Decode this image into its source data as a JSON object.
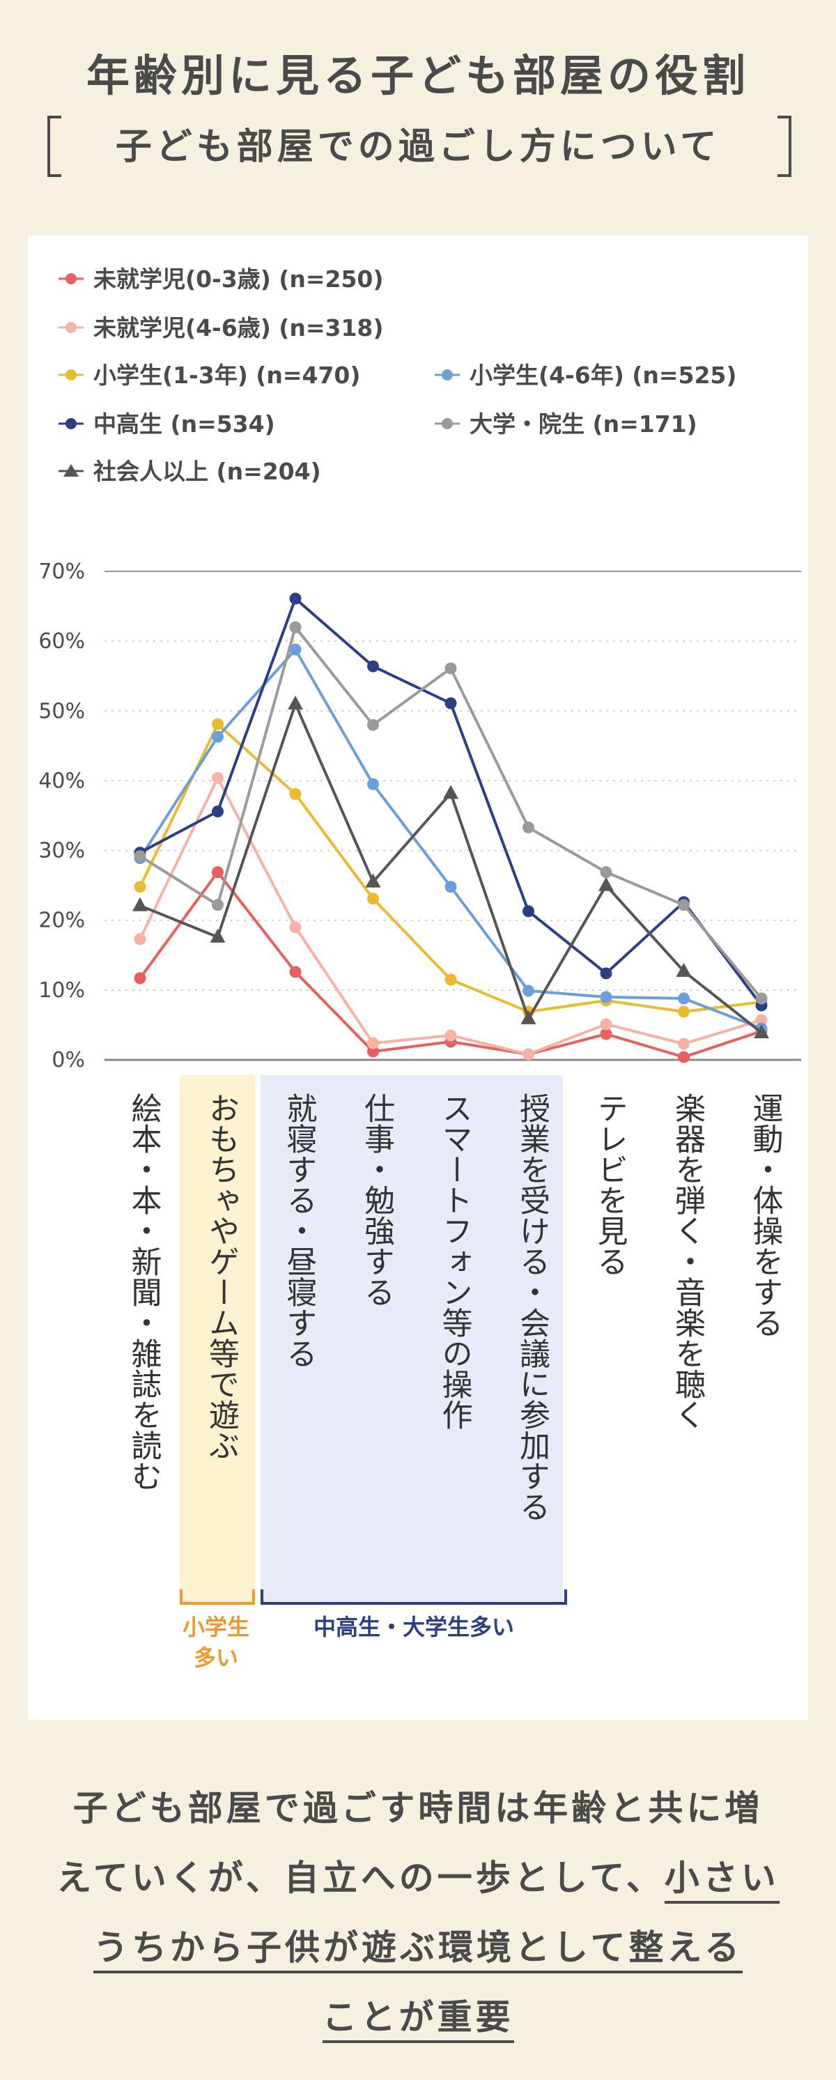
{
  "header": {
    "title": "年齢別に見る子ども部屋の役割",
    "subtitle": "子ども部屋での過ごし方について"
  },
  "chart_data": {
    "type": "line",
    "ylim": [
      0,
      70
    ],
    "yticks": [
      "0%",
      "10%",
      "20%",
      "30%",
      "40%",
      "50%",
      "60%",
      "70%"
    ],
    "grid": true,
    "legend_position": "top",
    "categories": [
      "絵本・本・新聞・雑誌を読む",
      "おもちゃやゲーム等で遊ぶ",
      "就寝する・昼寝する",
      "仕事・勉強する",
      "スマートフォン等の操作",
      "授業を受ける・会議に参加する",
      "テレビを見る",
      "楽器を弾く・音楽を聴く",
      "運動・体操をする"
    ],
    "series": [
      {
        "name": "未就学児(0-3歳)",
        "n": "(n=250)",
        "color": "#e8605c",
        "marker": "circle",
        "values": [
          11.7,
          26.9,
          12.6,
          1.2,
          2.6,
          0.8,
          3.7,
          0.4,
          4.1
        ]
      },
      {
        "name": "未就学児(4-6歳)",
        "n": "(n=318)",
        "color": "#f6b3a4",
        "marker": "circle",
        "values": [
          17.3,
          40.4,
          19.0,
          2.4,
          3.5,
          0.8,
          5.1,
          2.3,
          5.7
        ]
      },
      {
        "name": "小学生(1-3年)",
        "n": "(n=470)",
        "color": "#eabb2e",
        "marker": "circle",
        "values": [
          24.8,
          48.1,
          38.1,
          23.1,
          11.5,
          6.9,
          8.5,
          6.9,
          8.3
        ]
      },
      {
        "name": "小学生(4-6年)",
        "n": "(n=525)",
        "color": "#6c9edb",
        "marker": "circle",
        "values": [
          28.9,
          46.3,
          58.8,
          39.5,
          24.8,
          9.9,
          9.0,
          8.8,
          4.5
        ]
      },
      {
        "name": "中高生",
        "n": "(n=534)",
        "color": "#2b3f86",
        "marker": "circle",
        "values": [
          29.7,
          35.6,
          66.1,
          56.4,
          51.1,
          21.3,
          12.4,
          22.6,
          7.8
        ]
      },
      {
        "name": "大学・院生",
        "n": "(n=171)",
        "color": "#9a9a9a",
        "marker": "circle",
        "values": [
          29.2,
          22.2,
          62.0,
          48.0,
          56.1,
          33.3,
          26.9,
          22.2,
          8.8
        ]
      },
      {
        "name": "社会人以上",
        "n": "(n=204)",
        "color": "#555555",
        "marker": "triangle",
        "values": [
          22.1,
          17.6,
          51.0,
          25.5,
          38.2,
          5.9,
          25.0,
          12.7,
          3.9
        ]
      }
    ],
    "groups": [
      {
        "label": "小学生\n多い",
        "color": "#ec9a2e",
        "highlight": "#fdf1cf"
      },
      {
        "label": "中高生・大学生多い",
        "color": "#2b3f86",
        "highlight": "#e7ecf8"
      }
    ]
  },
  "conclusion": {
    "line1": "子ども部屋で過ごす時間は年齢と共に増",
    "line2a": "えていくが、自立への一歩として、",
    "line2b": "小さい",
    "line3a": "うちから子供が遊ぶ環境として",
    "line3b": "整える",
    "line4": "ことが重要"
  }
}
